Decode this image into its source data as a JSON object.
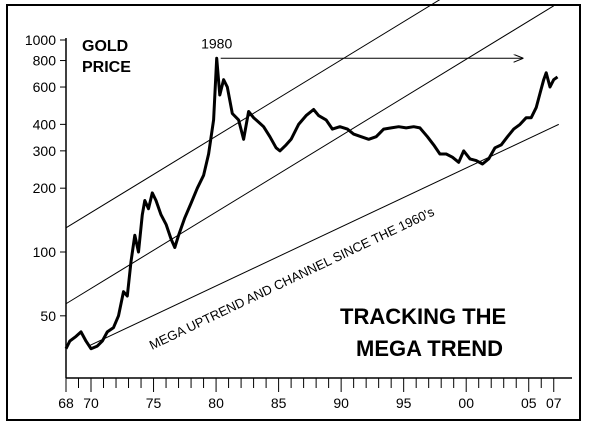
{
  "chart_data": {
    "type": "line",
    "title": [
      "GOLD",
      "PRICE"
    ],
    "scale": "log",
    "ylim": [
      30,
      1000
    ],
    "xlim": [
      1968,
      2007.5
    ],
    "yticks": [
      50,
      100,
      200,
      300,
      400,
      600,
      800,
      1000
    ],
    "xtick_labels": [
      {
        "year": 1968,
        "label": "68"
      },
      {
        "year": 1970,
        "label": "70"
      },
      {
        "year": 1975,
        "label": "75"
      },
      {
        "year": 1980,
        "label": "80"
      },
      {
        "year": 1985,
        "label": "85"
      },
      {
        "year": 1990,
        "label": "90"
      },
      {
        "year": 1995,
        "label": "95"
      },
      {
        "year": 2000,
        "label": "00"
      },
      {
        "year": 2005,
        "label": "05"
      },
      {
        "year": 2007,
        "label": "07"
      }
    ],
    "series": [
      {
        "points": [
          [
            1968.0,
            35
          ],
          [
            1968.3,
            38
          ],
          [
            1968.8,
            40
          ],
          [
            1969.2,
            42
          ],
          [
            1969.6,
            38
          ],
          [
            1970.0,
            35
          ],
          [
            1970.5,
            36
          ],
          [
            1970.9,
            38
          ],
          [
            1971.3,
            42
          ],
          [
            1971.8,
            44
          ],
          [
            1972.2,
            50
          ],
          [
            1972.6,
            65
          ],
          [
            1972.9,
            62
          ],
          [
            1973.2,
            90
          ],
          [
            1973.5,
            120
          ],
          [
            1973.8,
            100
          ],
          [
            1974.1,
            150
          ],
          [
            1974.3,
            175
          ],
          [
            1974.6,
            160
          ],
          [
            1974.9,
            190
          ],
          [
            1975.2,
            175
          ],
          [
            1975.6,
            150
          ],
          [
            1976.0,
            135
          ],
          [
            1976.4,
            115
          ],
          [
            1976.7,
            105
          ],
          [
            1977.0,
            120
          ],
          [
            1977.5,
            145
          ],
          [
            1978.0,
            170
          ],
          [
            1978.5,
            200
          ],
          [
            1979.0,
            230
          ],
          [
            1979.4,
            290
          ],
          [
            1979.8,
            420
          ],
          [
            1980.05,
            820
          ],
          [
            1980.3,
            550
          ],
          [
            1980.6,
            650
          ],
          [
            1980.9,
            600
          ],
          [
            1981.3,
            450
          ],
          [
            1981.8,
            420
          ],
          [
            1982.2,
            340
          ],
          [
            1982.6,
            460
          ],
          [
            1983.0,
            430
          ],
          [
            1983.4,
            410
          ],
          [
            1983.8,
            390
          ],
          [
            1984.3,
            350
          ],
          [
            1984.8,
            310
          ],
          [
            1985.1,
            300
          ],
          [
            1985.6,
            320
          ],
          [
            1986.0,
            340
          ],
          [
            1986.6,
            400
          ],
          [
            1987.2,
            440
          ],
          [
            1987.8,
            470
          ],
          [
            1988.2,
            440
          ],
          [
            1988.8,
            420
          ],
          [
            1989.3,
            380
          ],
          [
            1989.9,
            390
          ],
          [
            1990.5,
            380
          ],
          [
            1991.0,
            360
          ],
          [
            1991.6,
            350
          ],
          [
            1992.2,
            340
          ],
          [
            1992.8,
            350
          ],
          [
            1993.4,
            380
          ],
          [
            1994.0,
            385
          ],
          [
            1994.6,
            390
          ],
          [
            1995.2,
            385
          ],
          [
            1995.8,
            390
          ],
          [
            1996.3,
            385
          ],
          [
            1996.9,
            350
          ],
          [
            1997.4,
            320
          ],
          [
            1997.9,
            290
          ],
          [
            1998.4,
            290
          ],
          [
            1998.9,
            280
          ],
          [
            1999.4,
            265
          ],
          [
            1999.8,
            300
          ],
          [
            2000.3,
            275
          ],
          [
            2000.8,
            270
          ],
          [
            2001.3,
            260
          ],
          [
            2001.8,
            275
          ],
          [
            2002.3,
            310
          ],
          [
            2002.8,
            320
          ],
          [
            2003.3,
            350
          ],
          [
            2003.8,
            380
          ],
          [
            2004.3,
            400
          ],
          [
            2004.8,
            430
          ],
          [
            2005.2,
            430
          ],
          [
            2005.6,
            480
          ],
          [
            2005.9,
            560
          ],
          [
            2006.2,
            650
          ],
          [
            2006.4,
            700
          ],
          [
            2006.7,
            600
          ],
          [
            2007.0,
            650
          ],
          [
            2007.3,
            670
          ]
        ]
      }
    ],
    "channel_lines": [
      {
        "x": [
          1968,
          2007
        ],
        "y": [
          130,
          3300
        ]
      },
      {
        "x": [
          1968,
          2007
        ],
        "y": [
          57,
          1450
        ]
      },
      {
        "x": [
          1969.8,
          2007.4
        ],
        "y": [
          36,
          400
        ]
      }
    ],
    "peak_annotation": {
      "label": "1980",
      "x": 1980.05,
      "y": 820,
      "arrow_end": {
        "x": 2004.5,
        "y": 820
      }
    },
    "channel_label": "MEGA UPTREND AND CHANNEL SINCE THE 1960's",
    "headline": [
      "TRACKING THE",
      "MEGA TREND"
    ]
  }
}
